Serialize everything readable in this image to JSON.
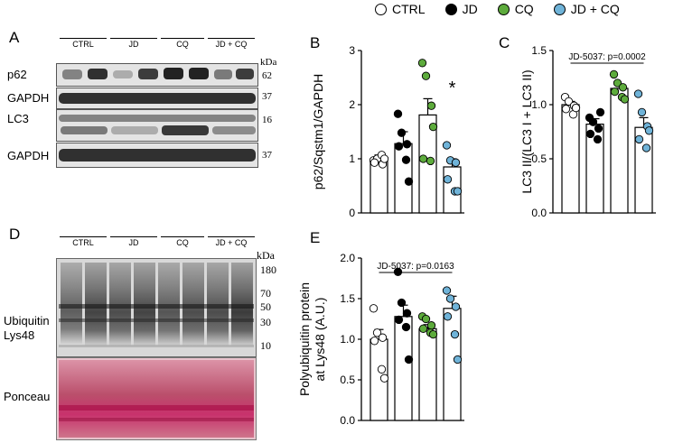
{
  "legend": [
    {
      "label": "CTRL",
      "color": "#ffffff"
    },
    {
      "label": "JD",
      "color": "#000000"
    },
    {
      "label": "CQ",
      "color": "#5dab3c"
    },
    {
      "label": "JD + CQ",
      "color": "#6fb3d8"
    }
  ],
  "panels": {
    "A": "A",
    "B": "B",
    "C": "C",
    "D": "D",
    "E": "E"
  },
  "blotA": {
    "groups": [
      "CTRL",
      "JD",
      "CQ",
      "JD + CQ"
    ],
    "kda": "kDa",
    "rows": [
      {
        "label": "p62",
        "mw": "62"
      },
      {
        "label": "GAPDH",
        "mw": "37"
      },
      {
        "label": "LC3",
        "mw": "16"
      },
      {
        "label": "GAPDH",
        "mw": "37"
      }
    ]
  },
  "blotD": {
    "groups": [
      "CTRL",
      "JD",
      "CQ",
      "JD + CQ"
    ],
    "kda": "kDa",
    "label_ub1": "Ubiquitin",
    "label_ub2": "Lys48",
    "label_ponceau": "Ponceau",
    "markers": [
      "180",
      "70",
      "50",
      "30",
      "10"
    ]
  },
  "chart_data": [
    {
      "id": "B",
      "type": "bar",
      "categories": [
        "CTRL",
        "JD",
        "CQ",
        "JD + CQ"
      ],
      "values": [
        1.0,
        1.28,
        1.81,
        0.85
      ],
      "sem": [
        0.07,
        0.22,
        0.3,
        0.15
      ],
      "points": [
        [
          0.97,
          1.0,
          0.9,
          0.93,
          1.07,
          1.0
        ],
        [
          1.83,
          1.48,
          1.27,
          1.23,
          0.98,
          0.58
        ],
        [
          2.77,
          2.53,
          1.98,
          1.0,
          0.96,
          1.59
        ],
        [
          1.25,
          0.97,
          0.93,
          0.62,
          0.4,
          0.4
        ]
      ],
      "ylabel": "p62/Sqstm1/GAPDH",
      "ylim": [
        0,
        3
      ],
      "yticks": [
        "0",
        "1",
        "2",
        "3"
      ],
      "annotation": "*",
      "colors": [
        "#ffffff",
        "#000000",
        "#5dab3c",
        "#6fb3d8"
      ]
    },
    {
      "id": "C",
      "type": "bar",
      "categories": [
        "CTRL",
        "JD",
        "CQ",
        "JD + CQ"
      ],
      "values": [
        1.0,
        0.82,
        1.15,
        0.79
      ],
      "sem": [
        0.03,
        0.05,
        0.04,
        0.09
      ],
      "points": [
        [
          1.07,
          1.03,
          0.99,
          0.96,
          0.91,
          0.97
        ],
        [
          0.88,
          0.84,
          0.78,
          0.73,
          0.68,
          0.93
        ],
        [
          1.28,
          1.2,
          1.16,
          1.12,
          1.07,
          1.05
        ],
        [
          1.1,
          0.93,
          0.8,
          0.68,
          0.6,
          0.76
        ]
      ],
      "ylabel": "LC3 II/(LC3 I + LC3 II)",
      "ylim": [
        0,
        1.5
      ],
      "yticks": [
        "0.0",
        "0.5",
        "1.0",
        "1.5"
      ],
      "annotation": "JD-5037: p=0.0002",
      "colors": [
        "#ffffff",
        "#000000",
        "#5dab3c",
        "#6fb3d8"
      ]
    },
    {
      "id": "E",
      "type": "bar",
      "categories": [
        "CTRL",
        "JD",
        "CQ",
        "JD + CQ"
      ],
      "values": [
        1.0,
        1.28,
        1.13,
        1.38
      ],
      "sem": [
        0.12,
        0.14,
        0.05,
        0.15
      ],
      "points": [
        [
          1.38,
          1.08,
          1.02,
          0.98,
          0.63,
          0.52
        ],
        [
          1.83,
          1.45,
          1.32,
          1.24,
          1.15,
          0.75
        ],
        [
          1.28,
          1.25,
          1.17,
          1.13,
          1.08,
          1.06
        ],
        [
          1.6,
          1.5,
          1.4,
          1.28,
          1.06,
          0.75
        ]
      ],
      "ylabel_line1": "Polyubiquitin protein",
      "ylabel_line2": "at Lys48 (A.U.)",
      "ylim": [
        0,
        2
      ],
      "yticks": [
        "0.0",
        "0.5",
        "1.0",
        "1.5",
        "2.0"
      ],
      "annotation": "JD-5037: p=0.0163",
      "colors": [
        "#ffffff",
        "#000000",
        "#5dab3c",
        "#6fb3d8"
      ]
    }
  ]
}
